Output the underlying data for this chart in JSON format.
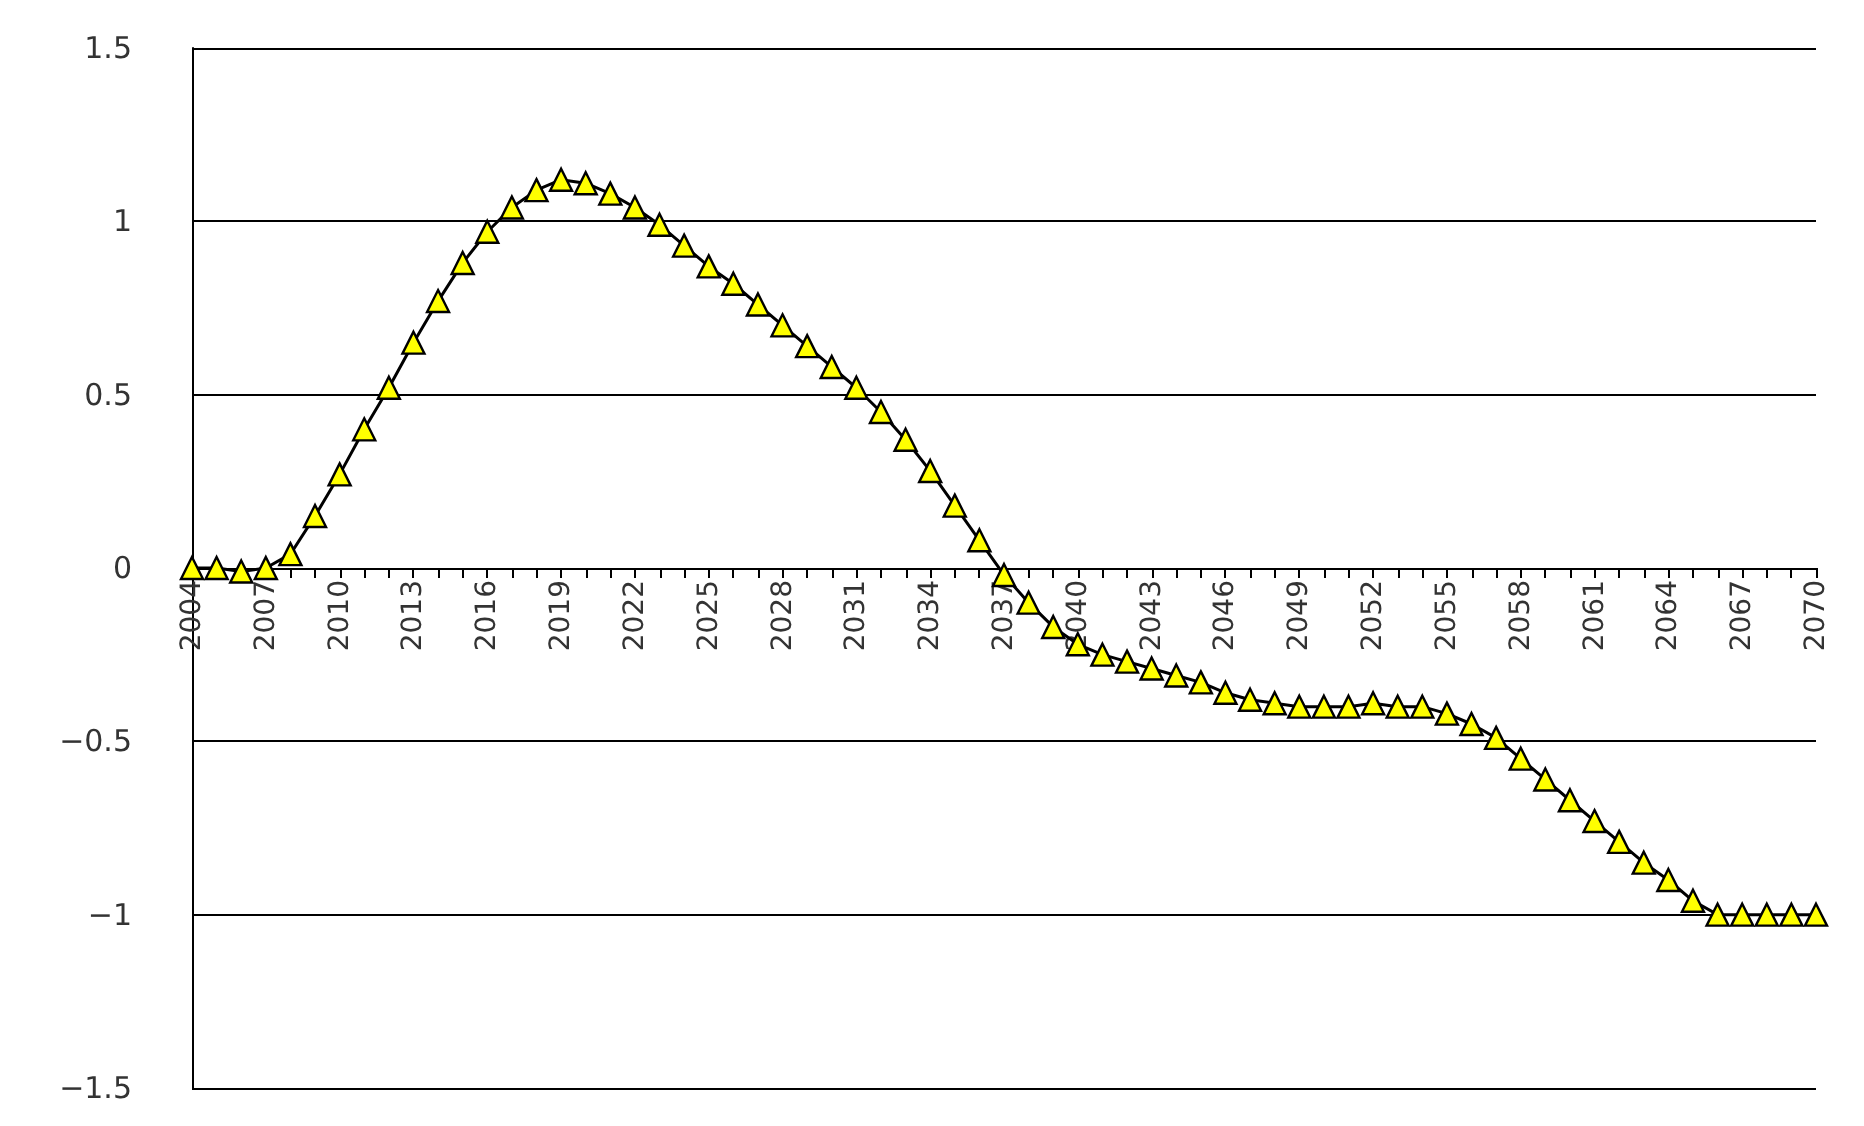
{
  "chart_data": {
    "type": "line",
    "categories": [
      "2004",
      null,
      null,
      "2007",
      null,
      null,
      "2010",
      null,
      null,
      "2013",
      null,
      null,
      "2016",
      null,
      null,
      "2019",
      null,
      null,
      "2022",
      null,
      null,
      "2025",
      null,
      null,
      "2028",
      null,
      null,
      "2031",
      null,
      null,
      "2034",
      null,
      null,
      "2037",
      null,
      null,
      "2040",
      null,
      null,
      "2043",
      null,
      null,
      "2046",
      null,
      null,
      "2049",
      null,
      null,
      "2052",
      null,
      null,
      "2055",
      null,
      null,
      "2058",
      null,
      null,
      "2061",
      null,
      null,
      "2064",
      null,
      null,
      "2067",
      null,
      null,
      "2070"
    ],
    "series": [
      {
        "color": "#ffff00",
        "values": [
          0,
          0,
          -0.01,
          0,
          0.04,
          0.15,
          0.27,
          0.4,
          0.52,
          0.65,
          0.77,
          0.88,
          0.97,
          1.04,
          1.09,
          1.12,
          1.11,
          1.08,
          1.04,
          0.99,
          0.93,
          0.87,
          0.82,
          0.76,
          0.7,
          0.64,
          0.58,
          0.52,
          0.45,
          0.37,
          0.28,
          0.18,
          0.08,
          -0.02,
          -0.1,
          -0.17,
          -0.22,
          -0.25,
          -0.27,
          -0.29,
          -0.31,
          -0.33,
          -0.36,
          -0.38,
          -0.39,
          -0.4,
          -0.4,
          -0.4,
          -0.39,
          -0.4,
          -0.4,
          -0.42,
          -0.45,
          -0.49,
          -0.55,
          -0.61,
          -0.67,
          -0.73,
          -0.79,
          -0.85,
          -0.9,
          -0.96,
          -1,
          -1,
          -1,
          -1,
          -1
        ]
      }
    ],
    "ylim": [
      -1.5,
      1.5
    ],
    "yticks": [
      {
        "value": -1.5,
        "label": "−1.5"
      },
      {
        "value": -1,
        "label": "−1"
      },
      {
        "value": -0.5,
        "label": "−0.5"
      },
      0,
      0.5,
      1,
      1.5
    ],
    "grid": "y",
    "marker": "triangle",
    "line_style": "solid"
  }
}
